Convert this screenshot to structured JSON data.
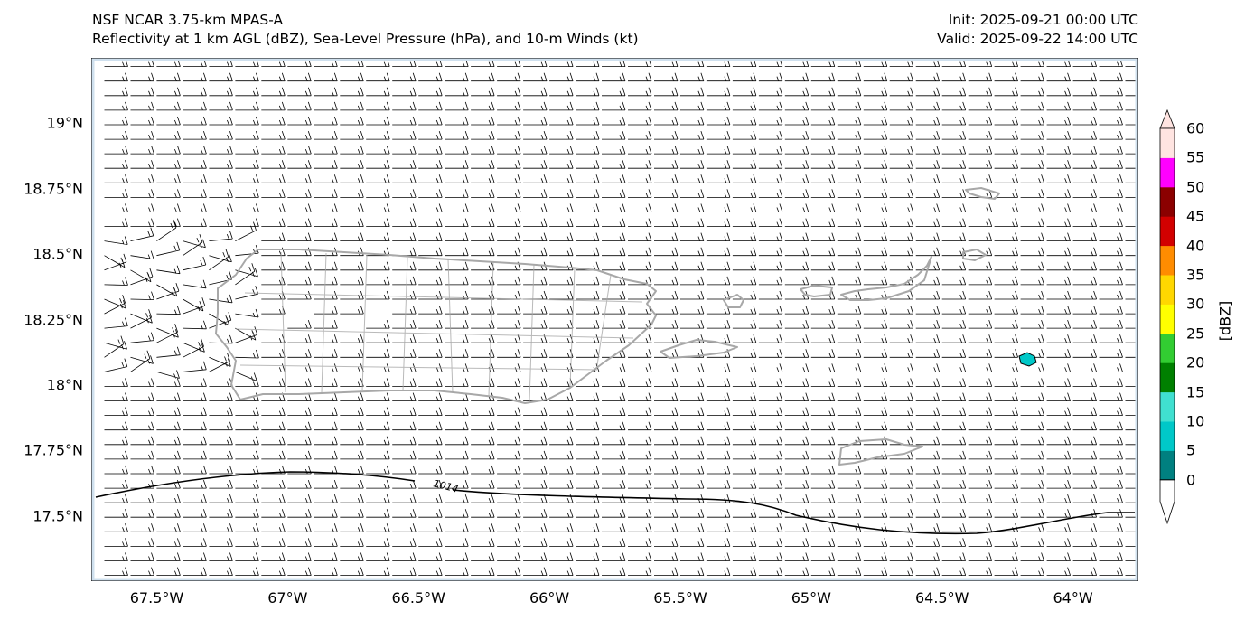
{
  "title": {
    "line1": "NSF NCAR 3.75-km MPAS-A",
    "line2": "Reflectivity at 1 km AGL (dBZ), Sea-Level Pressure (hPa), and 10-m Winds (kt)",
    "init": "Init: 2025-09-21 00:00 UTC",
    "valid": "Valid: 2025-09-22 14:00 UTC"
  },
  "map": {
    "extent": {
      "lon_min": -67.75,
      "lon_max": -63.75,
      "lat_min": 17.25,
      "lat_max": 19.25
    },
    "lat_ticks": [
      {
        "value": 19.0,
        "label": "19°N"
      },
      {
        "value": 18.75,
        "label": "18.75°N"
      },
      {
        "value": 18.5,
        "label": "18.5°N"
      },
      {
        "value": 18.25,
        "label": "18.25°N"
      },
      {
        "value": 18.0,
        "label": "18°N"
      },
      {
        "value": 17.75,
        "label": "17.75°N"
      },
      {
        "value": 17.5,
        "label": "17.5°N"
      }
    ],
    "lon_ticks": [
      {
        "value": -67.5,
        "label": "67.5°W"
      },
      {
        "value": -67.0,
        "label": "67°W"
      },
      {
        "value": -66.5,
        "label": "66.5°W"
      },
      {
        "value": -66.0,
        "label": "66°W"
      },
      {
        "value": -65.5,
        "label": "65.5°W"
      },
      {
        "value": -65.0,
        "label": "65°W"
      },
      {
        "value": -64.5,
        "label": "64.5°W"
      },
      {
        "value": -64.0,
        "label": "64°W"
      }
    ],
    "isobar_label": "1014",
    "colors": {
      "ocean_border": "#cfe0ee",
      "coast": "#a8a8a8",
      "isobar": "#000000",
      "barb": "#000000",
      "echo": "#00c8c8"
    }
  },
  "colorbar": {
    "title": "[dBZ]",
    "ticks": [
      "0",
      "5",
      "10",
      "15",
      "20",
      "25",
      "30",
      "35",
      "40",
      "45",
      "50",
      "55",
      "60"
    ],
    "colors": [
      "#008080",
      "#00c8c8",
      "#40e0d0",
      "#008000",
      "#32cd32",
      "#ffff00",
      "#ffd700",
      "#ff8c00",
      "#d20000",
      "#8b0000",
      "#ff00ff",
      "#ffe4e1"
    ]
  }
}
